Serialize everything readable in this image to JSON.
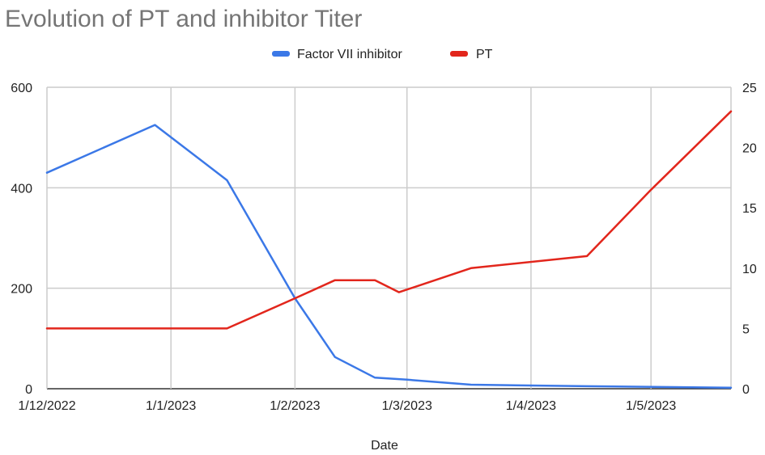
{
  "chart_data": {
    "type": "line",
    "title": "Evolution of PT and inhibitor Titer",
    "xlabel": "Date",
    "ylabel_left": "",
    "ylabel_right": "",
    "legend_position": "top-center",
    "grid": true,
    "x_ticks": [
      "1/12/2022",
      "1/1/2023",
      "1/2/2023",
      "1/3/2023",
      "1/4/2023",
      "1/5/2023"
    ],
    "x_tick_dates": [
      "2022-12-01",
      "2023-01-01",
      "2023-02-01",
      "2023-03-01",
      "2023-04-01",
      "2023-05-01"
    ],
    "x_range": [
      "2022-12-01",
      "2023-05-21"
    ],
    "y_left": {
      "range": [
        0,
        600
      ],
      "ticks": [
        0,
        200,
        400,
        600
      ]
    },
    "y_right": {
      "range": [
        0,
        25
      ],
      "ticks": [
        0,
        5,
        10,
        15,
        20,
        25
      ]
    },
    "series": [
      {
        "name": "Factor VII inhibitor",
        "color": "#3b78e7",
        "axis": "left",
        "points": [
          {
            "x": "2022-12-01",
            "y": 430
          },
          {
            "x": "2022-12-28",
            "y": 525
          },
          {
            "x": "2023-01-15",
            "y": 415
          },
          {
            "x": "2023-02-01",
            "y": 180
          },
          {
            "x": "2023-02-11",
            "y": 63
          },
          {
            "x": "2023-02-21",
            "y": 22
          },
          {
            "x": "2023-03-01",
            "y": 18
          },
          {
            "x": "2023-03-17",
            "y": 8
          },
          {
            "x": "2023-04-15",
            "y": 5
          },
          {
            "x": "2023-05-21",
            "y": 2
          }
        ]
      },
      {
        "name": "PT",
        "color": "#e2261c",
        "axis": "right",
        "points": [
          {
            "x": "2022-12-01",
            "y": 5
          },
          {
            "x": "2023-01-15",
            "y": 5
          },
          {
            "x": "2023-02-01",
            "y": 7.5
          },
          {
            "x": "2023-02-11",
            "y": 9
          },
          {
            "x": "2023-02-21",
            "y": 9
          },
          {
            "x": "2023-02-27",
            "y": 8
          },
          {
            "x": "2023-03-17",
            "y": 10
          },
          {
            "x": "2023-04-15",
            "y": 11
          },
          {
            "x": "2023-05-01",
            "y": 16.5
          },
          {
            "x": "2023-05-21",
            "y": 23
          }
        ]
      }
    ]
  }
}
